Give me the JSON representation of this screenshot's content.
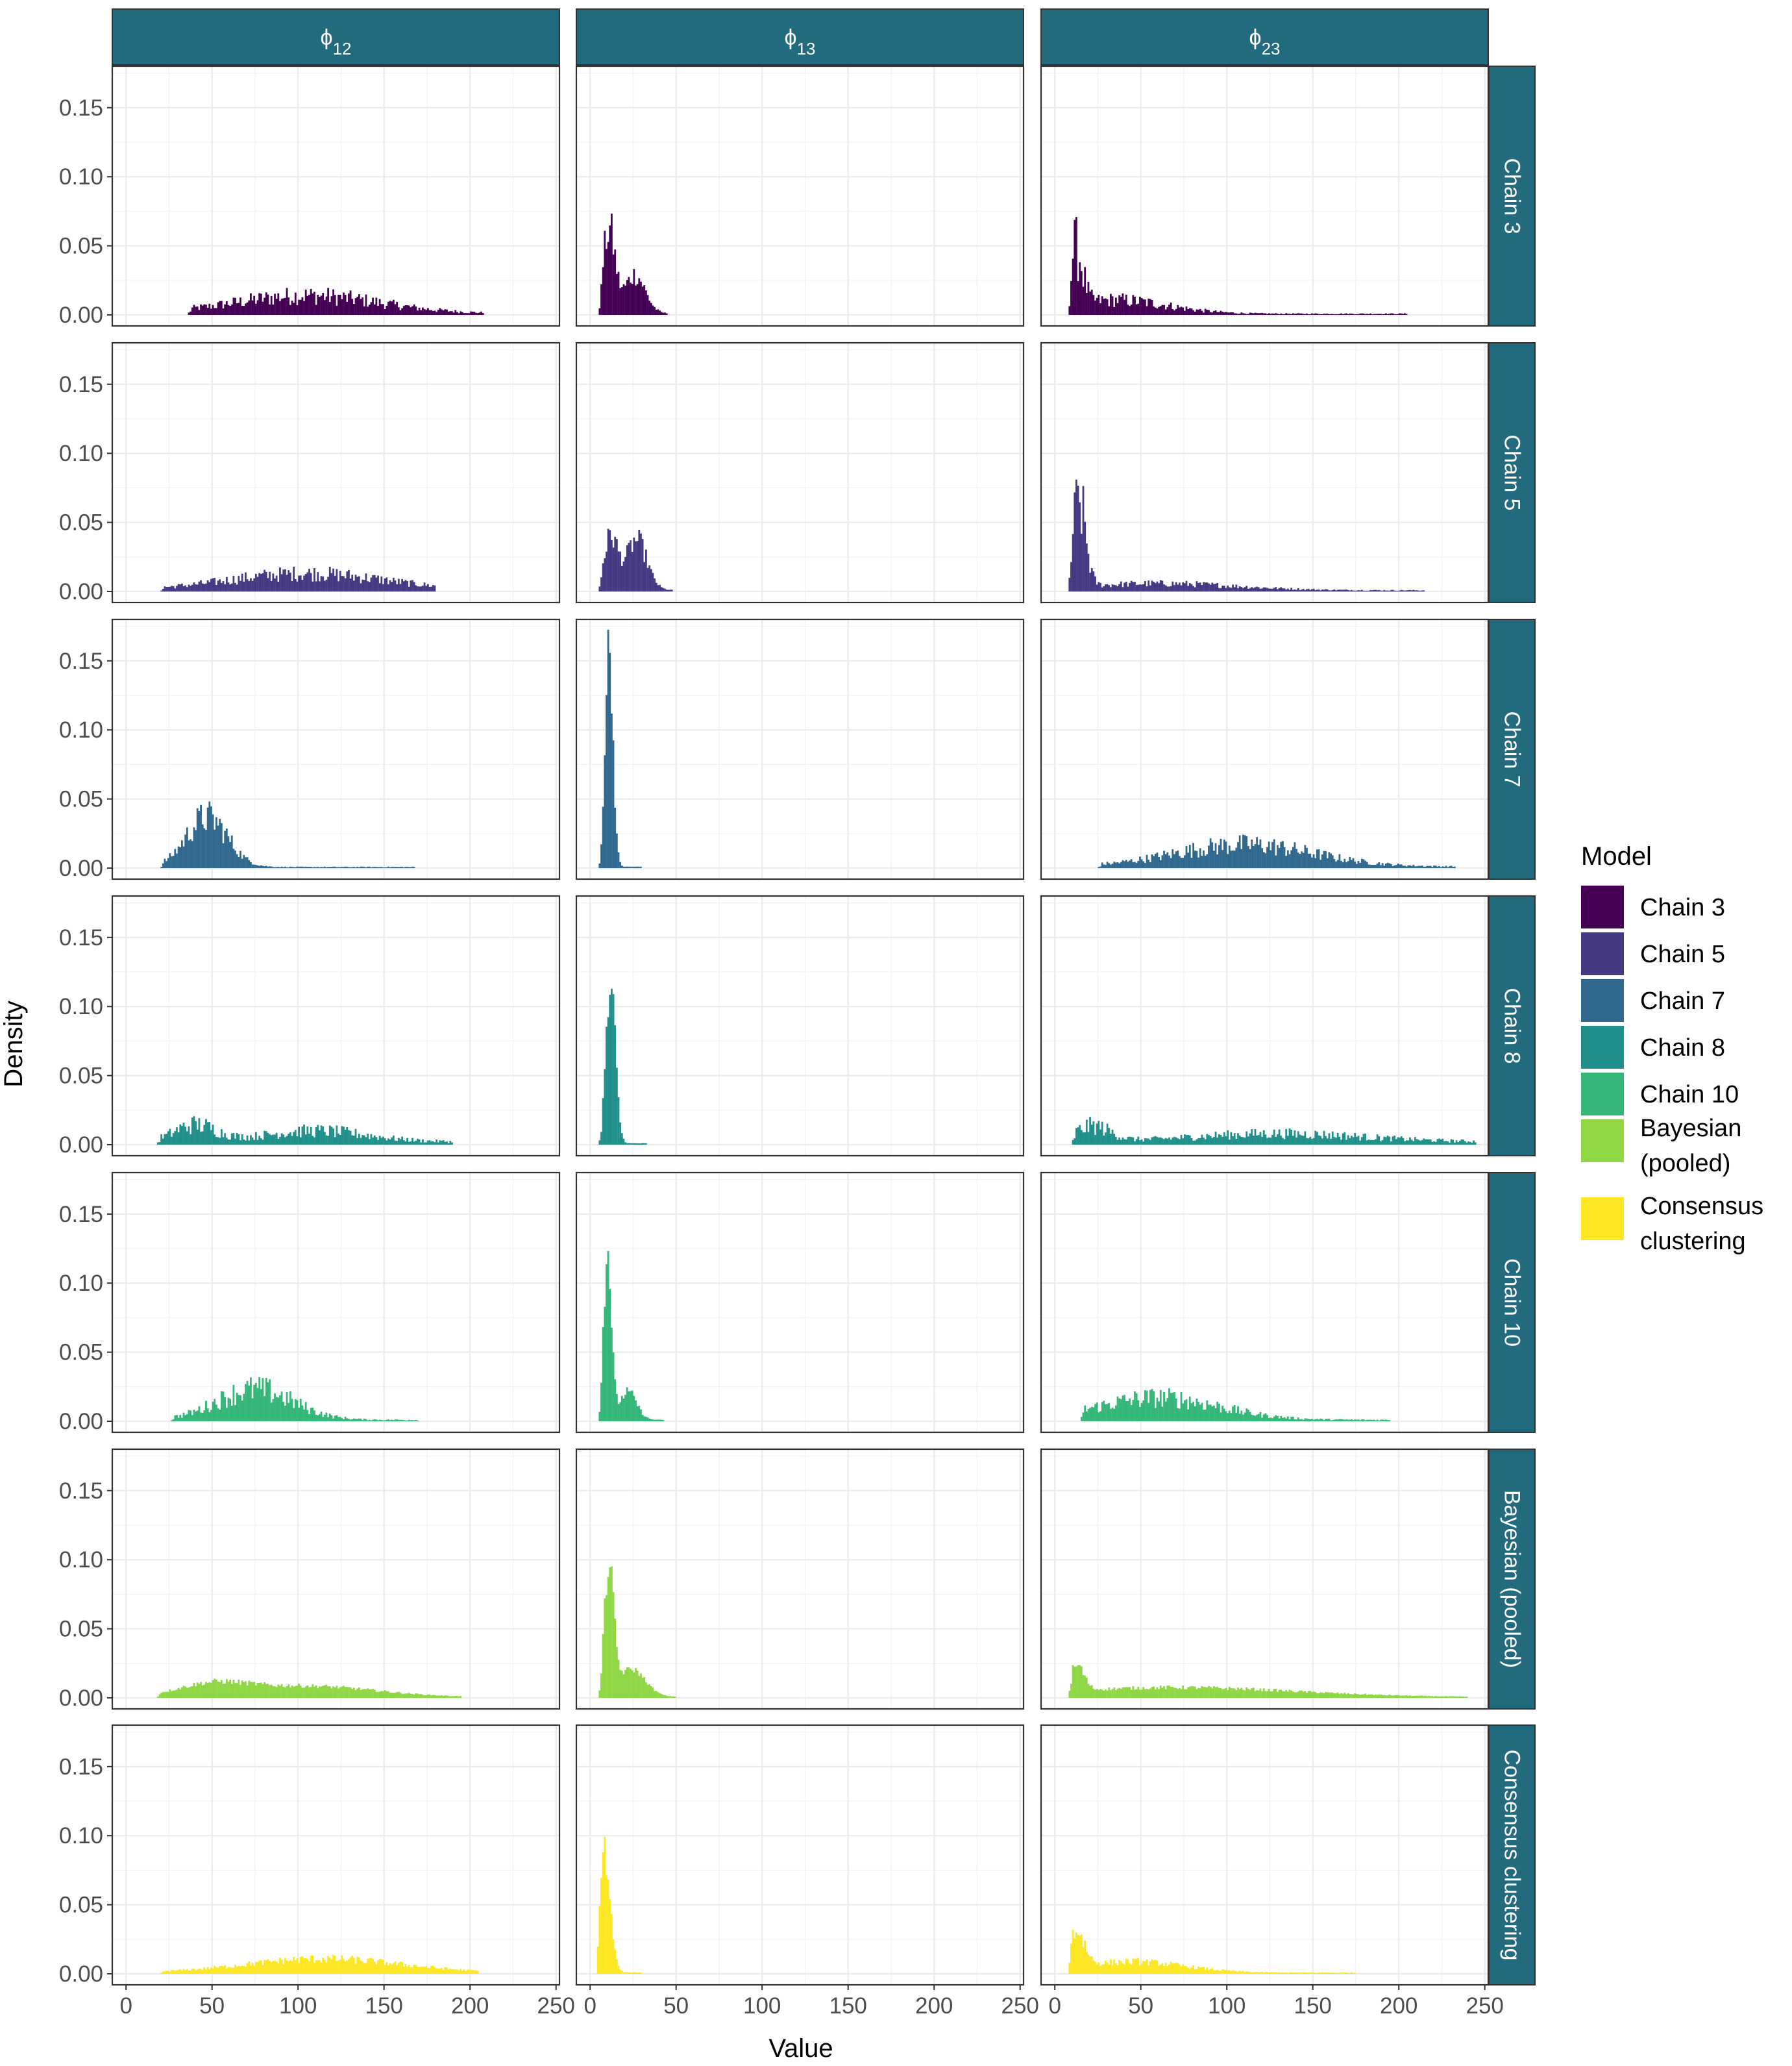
{
  "chart_data": {
    "type": "bar",
    "description_kind": "faceted histogram grid",
    "columns": [
      {
        "base": "ϕ",
        "sub": "12"
      },
      {
        "base": "ϕ",
        "sub": "13"
      },
      {
        "base": "ϕ",
        "sub": "23"
      }
    ],
    "rows": [
      "Chain 3",
      "Chain 5",
      "Chain 7",
      "Chain 8",
      "Chain 10",
      "Bayesian (pooled)",
      "Consensus clustering"
    ],
    "xlabel": "Value",
    "ylabel": "Density",
    "xlim": [
      -8,
      252
    ],
    "ylim": [
      -0.008,
      0.18
    ],
    "x_ticks": [
      0,
      50,
      100,
      150,
      200,
      250
    ],
    "y_ticks": [
      0.0,
      0.05,
      0.1,
      0.15
    ],
    "y_tick_labels": [
      "0.00",
      "0.05",
      "0.10",
      "0.15"
    ],
    "x_tick_labels": [
      "0",
      "50",
      "100",
      "150",
      "200",
      "250"
    ],
    "grid": true,
    "legend": {
      "title": "Model",
      "placement": "right",
      "entries": [
        {
          "lines": [
            "Chain 3"
          ],
          "color": "#440154"
        },
        {
          "lines": [
            "Chain 5"
          ],
          "color": "#443A83"
        },
        {
          "lines": [
            "Chain 7"
          ],
          "color": "#31688E"
        },
        {
          "lines": [
            "Chain 8"
          ],
          "color": "#21908C"
        },
        {
          "lines": [
            "Chain 10"
          ],
          "color": "#35B779"
        },
        {
          "lines": [
            "Bayesian",
            "(pooled)"
          ],
          "color": "#8FD744"
        },
        {
          "lines": [
            "Consensus",
            "clustering"
          ],
          "color": "#FDE725"
        }
      ]
    },
    "strip_color": "#226A7E",
    "series": [
      {
        "name": "Chain 3",
        "color": "#440154",
        "panels": [
          {
            "col": 0,
            "x_from": 36,
            "x_to": 208,
            "bin": 1,
            "components": [
              {
                "mu": 105,
                "sd": 42,
                "peak": 0.013
              }
            ],
            "tail": 0.001,
            "noise": 0.5
          },
          {
            "col": 1,
            "x_from": 5,
            "x_to": 45,
            "bin": 1,
            "components": [
              {
                "mu": 11,
                "sd": 3.5,
                "peak": 0.06
              },
              {
                "mu": 26,
                "sd": 6,
                "peak": 0.028
              }
            ],
            "tail": 0.001,
            "noise": 0.28
          },
          {
            "col": 2,
            "x_from": 8,
            "x_to": 205,
            "bin": 1,
            "components": [
              {
                "mu": 12,
                "sd": 4,
                "peak": 0.04
              },
              {
                "mu": 35,
                "sd": 30,
                "peak": 0.01
              }
            ],
            "tail": 0.0008,
            "noise": 0.5
          }
        ]
      },
      {
        "name": "Chain 5",
        "color": "#443A83",
        "panels": [
          {
            "col": 0,
            "x_from": 20,
            "x_to": 180,
            "bin": 1,
            "components": [
              {
                "mu": 105,
                "sd": 45,
                "peak": 0.012
              }
            ],
            "tail": 0.001,
            "noise": 0.45
          },
          {
            "col": 1,
            "x_from": 5,
            "x_to": 48,
            "bin": 1,
            "components": [
              {
                "mu": 12,
                "sd": 4,
                "peak": 0.038
              },
              {
                "mu": 27,
                "sd": 6,
                "peak": 0.036
              }
            ],
            "tail": 0.001,
            "noise": 0.25
          },
          {
            "col": 2,
            "x_from": 8,
            "x_to": 215,
            "bin": 1,
            "components": [
              {
                "mu": 14,
                "sd": 4,
                "peak": 0.06
              },
              {
                "mu": 60,
                "sd": 45,
                "peak": 0.005
              }
            ],
            "tail": 0.0008,
            "noise": 0.45
          }
        ]
      },
      {
        "name": "Chain 7",
        "color": "#31688E",
        "panels": [
          {
            "col": 0,
            "x_from": 20,
            "x_to": 168,
            "bin": 1,
            "components": [
              {
                "mu": 47,
                "sd": 12,
                "peak": 0.036
              }
            ],
            "tail": 0.0008,
            "noise": 0.35
          },
          {
            "col": 1,
            "x_from": 5,
            "x_to": 30,
            "bin": 1,
            "components": [
              {
                "mu": 11,
                "sd": 2.3,
                "peak": 0.16
              }
            ],
            "tail": 0.001,
            "noise": 0.15
          },
          {
            "col": 2,
            "x_from": 25,
            "x_to": 233,
            "bin": 1,
            "components": [
              {
                "mu": 110,
                "sd": 40,
                "peak": 0.016
              }
            ],
            "tail": 0.001,
            "noise": 0.45
          }
        ]
      },
      {
        "name": "Chain 8",
        "color": "#21908C",
        "panels": [
          {
            "col": 0,
            "x_from": 18,
            "x_to": 190,
            "bin": 1,
            "components": [
              {
                "mu": 40,
                "sd": 12,
                "peak": 0.012
              },
              {
                "mu": 110,
                "sd": 30,
                "peak": 0.008
              }
            ],
            "tail": 0.002,
            "noise": 0.5
          },
          {
            "col": 1,
            "x_from": 5,
            "x_to": 33,
            "bin": 1,
            "components": [
              {
                "mu": 12,
                "sd": 2.8,
                "peak": 0.11
              }
            ],
            "tail": 0.001,
            "noise": 0.2
          },
          {
            "col": 2,
            "x_from": 10,
            "x_to": 245,
            "bin": 1,
            "components": [
              {
                "mu": 22,
                "sd": 10,
                "peak": 0.011
              },
              {
                "mu": 130,
                "sd": 50,
                "peak": 0.006
              }
            ],
            "tail": 0.002,
            "noise": 0.5
          }
        ]
      },
      {
        "name": "Chain 10",
        "color": "#35B779",
        "panels": [
          {
            "col": 0,
            "x_from": 26,
            "x_to": 170,
            "bin": 1,
            "components": [
              {
                "mu": 75,
                "sd": 22,
                "peak": 0.022
              }
            ],
            "tail": 0.001,
            "noise": 0.45
          },
          {
            "col": 1,
            "x_from": 5,
            "x_to": 43,
            "bin": 1,
            "components": [
              {
                "mu": 10,
                "sd": 2.3,
                "peak": 0.125
              },
              {
                "mu": 22,
                "sd": 5,
                "peak": 0.02
              }
            ],
            "tail": 0.001,
            "noise": 0.2
          },
          {
            "col": 2,
            "x_from": 15,
            "x_to": 195,
            "bin": 1,
            "components": [
              {
                "mu": 60,
                "sd": 35,
                "peak": 0.016
              }
            ],
            "tail": 0.001,
            "noise": 0.45
          }
        ]
      },
      {
        "name": "Bayesian (pooled)",
        "color": "#8FD744",
        "panels": [
          {
            "col": 0,
            "x_from": 18,
            "x_to": 195,
            "bin": 1,
            "components": [
              {
                "mu": 50,
                "sd": 20,
                "peak": 0.008
              },
              {
                "mu": 105,
                "sd": 40,
                "peak": 0.008
              }
            ],
            "tail": 0.0005,
            "noise": 0.18
          },
          {
            "col": 1,
            "x_from": 5,
            "x_to": 50,
            "bin": 1,
            "components": [
              {
                "mu": 11,
                "sd": 2.8,
                "peak": 0.09
              },
              {
                "mu": 24,
                "sd": 8,
                "peak": 0.02
              }
            ],
            "tail": 0.0008,
            "noise": 0.12
          },
          {
            "col": 2,
            "x_from": 8,
            "x_to": 240,
            "bin": 1,
            "components": [
              {
                "mu": 13,
                "sd": 4,
                "peak": 0.018
              },
              {
                "mu": 70,
                "sd": 70,
                "peak": 0.007
              }
            ],
            "tail": 0.0005,
            "noise": 0.2
          }
        ]
      },
      {
        "name": "Consensus clustering",
        "color": "#FDE725",
        "panels": [
          {
            "col": 0,
            "x_from": 20,
            "x_to": 205,
            "bin": 1,
            "components": [
              {
                "mu": 115,
                "sd": 45,
                "peak": 0.01
              }
            ],
            "tail": 0.0008,
            "noise": 0.3
          },
          {
            "col": 1,
            "x_from": 4,
            "x_to": 30,
            "bin": 1,
            "components": [
              {
                "mu": 8,
                "sd": 3.5,
                "peak": 0.088
              }
            ],
            "tail": 0.001,
            "noise": 0.15
          },
          {
            "col": 2,
            "x_from": 8,
            "x_to": 175,
            "bin": 1,
            "components": [
              {
                "mu": 12,
                "sd": 5,
                "peak": 0.027
              },
              {
                "mu": 45,
                "sd": 30,
                "peak": 0.008
              }
            ],
            "tail": 0.0008,
            "noise": 0.3
          }
        ]
      }
    ]
  }
}
